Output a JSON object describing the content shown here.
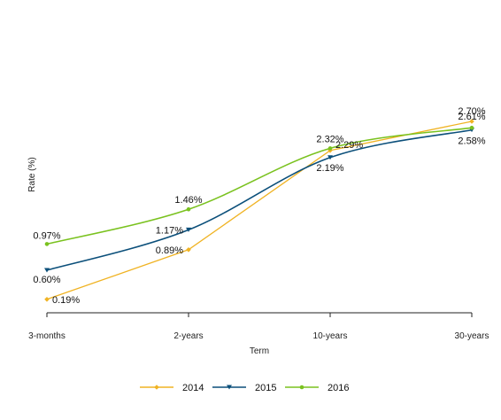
{
  "chart_data": {
    "type": "line",
    "xlabel": "Term",
    "ylabel": "Rate (%)",
    "categories": [
      "3-months",
      "2-years",
      "10-years",
      "30-years"
    ],
    "ylim": [
      0,
      3.2
    ],
    "grid": false,
    "legend_position": "bottom",
    "series": [
      {
        "name": "2014",
        "color": "#f0b323",
        "marker": "diamond",
        "values": [
          0.19,
          0.89,
          2.29,
          2.7
        ],
        "labels": [
          "0.19%",
          "0.89%",
          "2.29%",
          "2.70%"
        ]
      },
      {
        "name": "2015",
        "color": "#0b4f7a",
        "marker": "triangle-down",
        "values": [
          0.6,
          1.17,
          2.19,
          2.58
        ],
        "labels": [
          "0.60%",
          "1.17%",
          "2.19%",
          "2.58%"
        ]
      },
      {
        "name": "2016",
        "color": "#7ac21f",
        "marker": "circle",
        "values": [
          0.97,
          1.46,
          2.32,
          2.61
        ],
        "labels": [
          "0.97%",
          "1.46%",
          "2.32%",
          "2.61%"
        ]
      }
    ]
  }
}
